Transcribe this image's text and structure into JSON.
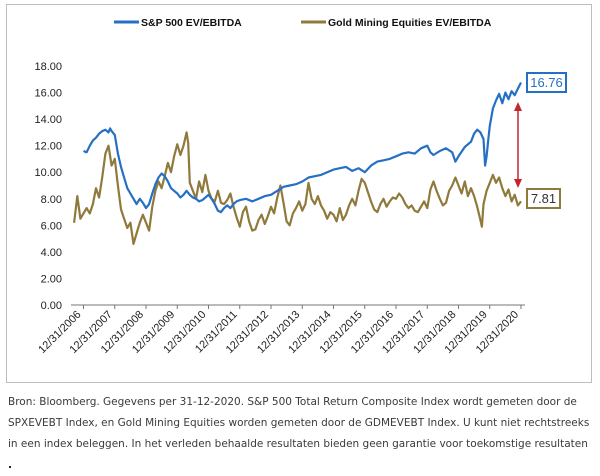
{
  "chart_data": {
    "type": "line",
    "title": "",
    "xlabel": "",
    "ylabel": "",
    "ylim": [
      0,
      18
    ],
    "y_ticks": [
      "0.00",
      "2.00",
      "4.00",
      "6.00",
      "8.00",
      "10.00",
      "12.00",
      "14.00",
      "16.00",
      "18.00"
    ],
    "x_ticks": [
      "12/31/2006",
      "12/31/2007",
      "12/31/2008",
      "12/31/2009",
      "12/31/2010",
      "12/31/2011",
      "12/31/2012",
      "12/31/2013",
      "12/31/2014",
      "12/31/2015",
      "12/31/2016",
      "12/31/2017",
      "12/31/2018",
      "12/31/2019",
      "12/31/2020"
    ],
    "xlim": [
      2006.6,
      2021.0
    ],
    "grid": false,
    "legend_position": "top",
    "series": [
      {
        "name": "S&P 500 EV/EBITDA",
        "color": "#2670c4",
        "end_label": "16.76",
        "points": [
          [
            2007.0,
            11.6
          ],
          [
            2007.1,
            11.5
          ],
          [
            2007.2,
            12.0
          ],
          [
            2007.3,
            12.4
          ],
          [
            2007.4,
            12.6
          ],
          [
            2007.5,
            12.9
          ],
          [
            2007.6,
            13.1
          ],
          [
            2007.7,
            13.2
          ],
          [
            2007.8,
            13.0
          ],
          [
            2007.85,
            13.3
          ],
          [
            2007.9,
            13.1
          ],
          [
            2008.0,
            12.8
          ],
          [
            2008.1,
            11.4
          ],
          [
            2008.2,
            10.4
          ],
          [
            2008.3,
            9.6
          ],
          [
            2008.4,
            8.8
          ],
          [
            2008.5,
            8.4
          ],
          [
            2008.6,
            8.0
          ],
          [
            2008.7,
            7.6
          ],
          [
            2008.8,
            8.0
          ],
          [
            2008.9,
            7.7
          ],
          [
            2009.0,
            7.3
          ],
          [
            2009.1,
            7.6
          ],
          [
            2009.2,
            8.4
          ],
          [
            2009.3,
            9.1
          ],
          [
            2009.4,
            9.6
          ],
          [
            2009.5,
            9.9
          ],
          [
            2009.6,
            9.7
          ],
          [
            2009.7,
            9.3
          ],
          [
            2009.8,
            8.8
          ],
          [
            2009.9,
            8.6
          ],
          [
            2010.0,
            8.4
          ],
          [
            2010.1,
            8.1
          ],
          [
            2010.2,
            8.3
          ],
          [
            2010.3,
            8.6
          ],
          [
            2010.4,
            8.3
          ],
          [
            2010.5,
            8.1
          ],
          [
            2010.6,
            8.0
          ],
          [
            2010.7,
            7.8
          ],
          [
            2010.8,
            7.9
          ],
          [
            2010.9,
            8.1
          ],
          [
            2011.0,
            8.3
          ],
          [
            2011.1,
            8.0
          ],
          [
            2011.2,
            7.6
          ],
          [
            2011.3,
            7.1
          ],
          [
            2011.4,
            7.0
          ],
          [
            2011.5,
            7.3
          ],
          [
            2011.6,
            7.5
          ],
          [
            2011.7,
            7.3
          ],
          [
            2011.8,
            7.6
          ],
          [
            2011.9,
            7.8
          ],
          [
            2012.0,
            7.9
          ],
          [
            2012.2,
            8.0
          ],
          [
            2012.4,
            7.8
          ],
          [
            2012.6,
            8.0
          ],
          [
            2012.8,
            8.2
          ],
          [
            2013.0,
            8.3
          ],
          [
            2013.2,
            8.6
          ],
          [
            2013.4,
            8.9
          ],
          [
            2013.6,
            9.0
          ],
          [
            2013.8,
            9.1
          ],
          [
            2014.0,
            9.3
          ],
          [
            2014.2,
            9.6
          ],
          [
            2014.4,
            9.7
          ],
          [
            2014.6,
            9.8
          ],
          [
            2014.8,
            10.0
          ],
          [
            2015.0,
            10.2
          ],
          [
            2015.2,
            10.3
          ],
          [
            2015.4,
            10.4
          ],
          [
            2015.6,
            10.1
          ],
          [
            2015.8,
            10.3
          ],
          [
            2016.0,
            10.0
          ],
          [
            2016.2,
            10.5
          ],
          [
            2016.4,
            10.8
          ],
          [
            2016.6,
            10.9
          ],
          [
            2016.8,
            11.0
          ],
          [
            2017.0,
            11.2
          ],
          [
            2017.2,
            11.4
          ],
          [
            2017.4,
            11.5
          ],
          [
            2017.6,
            11.4
          ],
          [
            2017.8,
            11.8
          ],
          [
            2018.0,
            12.0
          ],
          [
            2018.1,
            11.5
          ],
          [
            2018.2,
            11.3
          ],
          [
            2018.4,
            11.6
          ],
          [
            2018.6,
            11.8
          ],
          [
            2018.8,
            11.5
          ],
          [
            2018.9,
            10.8
          ],
          [
            2019.0,
            11.2
          ],
          [
            2019.2,
            11.9
          ],
          [
            2019.4,
            12.3
          ],
          [
            2019.5,
            12.9
          ],
          [
            2019.6,
            13.2
          ],
          [
            2019.7,
            13.0
          ],
          [
            2019.8,
            12.5
          ],
          [
            2019.85,
            10.5
          ],
          [
            2019.9,
            11.2
          ],
          [
            2019.95,
            12.4
          ],
          [
            2020.0,
            13.5
          ],
          [
            2020.1,
            14.8
          ],
          [
            2020.2,
            15.4
          ],
          [
            2020.3,
            15.9
          ],
          [
            2020.4,
            15.2
          ],
          [
            2020.5,
            16.0
          ],
          [
            2020.6,
            15.5
          ],
          [
            2020.7,
            16.1
          ],
          [
            2020.8,
            15.8
          ],
          [
            2020.9,
            16.3
          ],
          [
            2021.0,
            16.76
          ]
        ]
      },
      {
        "name": "Gold Mining Equities EV/EBITDA",
        "color": "#8f7a3c",
        "end_label": "7.81",
        "points": [
          [
            2006.7,
            6.2
          ],
          [
            2006.8,
            8.2
          ],
          [
            2006.9,
            6.5
          ],
          [
            2007.0,
            6.9
          ],
          [
            2007.1,
            7.3
          ],
          [
            2007.2,
            6.9
          ],
          [
            2007.3,
            7.6
          ],
          [
            2007.4,
            8.8
          ],
          [
            2007.5,
            8.1
          ],
          [
            2007.6,
            9.6
          ],
          [
            2007.7,
            11.4
          ],
          [
            2007.8,
            12.0
          ],
          [
            2007.9,
            10.5
          ],
          [
            2008.0,
            11.0
          ],
          [
            2008.1,
            9.0
          ],
          [
            2008.2,
            7.2
          ],
          [
            2008.3,
            6.5
          ],
          [
            2008.4,
            5.8
          ],
          [
            2008.5,
            6.2
          ],
          [
            2008.6,
            4.6
          ],
          [
            2008.7,
            5.4
          ],
          [
            2008.8,
            6.2
          ],
          [
            2008.9,
            6.8
          ],
          [
            2009.0,
            6.2
          ],
          [
            2009.1,
            5.6
          ],
          [
            2009.2,
            7.4
          ],
          [
            2009.3,
            8.6
          ],
          [
            2009.4,
            9.3
          ],
          [
            2009.5,
            8.8
          ],
          [
            2009.6,
            9.7
          ],
          [
            2009.7,
            10.7
          ],
          [
            2009.8,
            10.0
          ],
          [
            2009.9,
            11.2
          ],
          [
            2010.0,
            12.1
          ],
          [
            2010.1,
            11.3
          ],
          [
            2010.2,
            12.0
          ],
          [
            2010.3,
            13.0
          ],
          [
            2010.35,
            12.2
          ],
          [
            2010.4,
            9.2
          ],
          [
            2010.5,
            8.6
          ],
          [
            2010.6,
            8.0
          ],
          [
            2010.7,
            9.3
          ],
          [
            2010.8,
            8.5
          ],
          [
            2010.9,
            9.8
          ],
          [
            2011.0,
            8.6
          ],
          [
            2011.1,
            8.0
          ],
          [
            2011.2,
            7.8
          ],
          [
            2011.3,
            8.6
          ],
          [
            2011.4,
            7.7
          ],
          [
            2011.5,
            7.6
          ],
          [
            2011.6,
            7.9
          ],
          [
            2011.7,
            8.4
          ],
          [
            2011.8,
            7.4
          ],
          [
            2011.9,
            6.6
          ],
          [
            2012.0,
            5.9
          ],
          [
            2012.1,
            7.0
          ],
          [
            2012.2,
            7.4
          ],
          [
            2012.3,
            6.3
          ],
          [
            2012.4,
            5.6
          ],
          [
            2012.5,
            5.7
          ],
          [
            2012.6,
            6.4
          ],
          [
            2012.7,
            6.8
          ],
          [
            2012.8,
            6.1
          ],
          [
            2012.9,
            6.7
          ],
          [
            2013.0,
            7.4
          ],
          [
            2013.1,
            6.9
          ],
          [
            2013.2,
            8.1
          ],
          [
            2013.3,
            9.0
          ],
          [
            2013.4,
            7.7
          ],
          [
            2013.5,
            6.3
          ],
          [
            2013.6,
            6.0
          ],
          [
            2013.7,
            6.9
          ],
          [
            2013.8,
            7.3
          ],
          [
            2013.9,
            7.8
          ],
          [
            2014.0,
            7.1
          ],
          [
            2014.1,
            7.6
          ],
          [
            2014.2,
            9.2
          ],
          [
            2014.3,
            8.0
          ],
          [
            2014.4,
            7.6
          ],
          [
            2014.5,
            8.2
          ],
          [
            2014.6,
            7.5
          ],
          [
            2014.7,
            7.1
          ],
          [
            2014.8,
            6.5
          ],
          [
            2014.9,
            7.0
          ],
          [
            2015.0,
            6.8
          ],
          [
            2015.1,
            6.3
          ],
          [
            2015.2,
            7.3
          ],
          [
            2015.3,
            6.4
          ],
          [
            2015.4,
            6.8
          ],
          [
            2015.5,
            7.5
          ],
          [
            2015.6,
            8.0
          ],
          [
            2015.7,
            7.5
          ],
          [
            2015.8,
            8.6
          ],
          [
            2015.9,
            9.5
          ],
          [
            2016.0,
            9.2
          ],
          [
            2016.1,
            8.5
          ],
          [
            2016.2,
            7.8
          ],
          [
            2016.3,
            7.2
          ],
          [
            2016.4,
            7.0
          ],
          [
            2016.5,
            7.6
          ],
          [
            2016.6,
            8.0
          ],
          [
            2016.7,
            7.4
          ],
          [
            2016.8,
            7.8
          ],
          [
            2016.9,
            8.1
          ],
          [
            2017.0,
            8.0
          ],
          [
            2017.1,
            8.4
          ],
          [
            2017.2,
            8.1
          ],
          [
            2017.3,
            7.6
          ],
          [
            2017.4,
            7.3
          ],
          [
            2017.5,
            7.5
          ],
          [
            2017.6,
            7.1
          ],
          [
            2017.7,
            7.0
          ],
          [
            2017.8,
            7.4
          ],
          [
            2017.9,
            7.8
          ],
          [
            2018.0,
            7.3
          ],
          [
            2018.1,
            8.7
          ],
          [
            2018.2,
            9.3
          ],
          [
            2018.3,
            8.6
          ],
          [
            2018.4,
            8.0
          ],
          [
            2018.5,
            7.5
          ],
          [
            2018.6,
            7.7
          ],
          [
            2018.7,
            8.6
          ],
          [
            2018.8,
            9.0
          ],
          [
            2018.9,
            9.6
          ],
          [
            2019.0,
            9.0
          ],
          [
            2019.1,
            8.4
          ],
          [
            2019.2,
            9.3
          ],
          [
            2019.3,
            8.2
          ],
          [
            2019.4,
            8.8
          ],
          [
            2019.5,
            8.2
          ],
          [
            2019.6,
            7.4
          ],
          [
            2019.7,
            6.4
          ],
          [
            2019.75,
            5.9
          ],
          [
            2019.8,
            7.6
          ],
          [
            2019.9,
            8.6
          ],
          [
            2020.0,
            9.2
          ],
          [
            2020.1,
            9.8
          ],
          [
            2020.2,
            9.2
          ],
          [
            2020.3,
            9.6
          ],
          [
            2020.4,
            8.8
          ],
          [
            2020.5,
            8.2
          ],
          [
            2020.6,
            8.7
          ],
          [
            2020.7,
            7.8
          ],
          [
            2020.8,
            8.3
          ],
          [
            2020.9,
            7.5
          ],
          [
            2021.0,
            7.81
          ]
        ]
      }
    ]
  },
  "caption": {
    "line1": "Bron: Bloomberg. Gegevens per 31-12-2020. S&P 500 Total Return Composite Index wordt gemeten door de",
    "line2": "SPXEVEBT Index, en Gold Mining Equities worden gemeten door de GDMEVEBT Index. U kunt niet rechtstreeks",
    "line3": "in een index beleggen. In het verleden behaalde resultaten bieden geen garantie voor toekomstige resultaten",
    "end_mark": "."
  }
}
